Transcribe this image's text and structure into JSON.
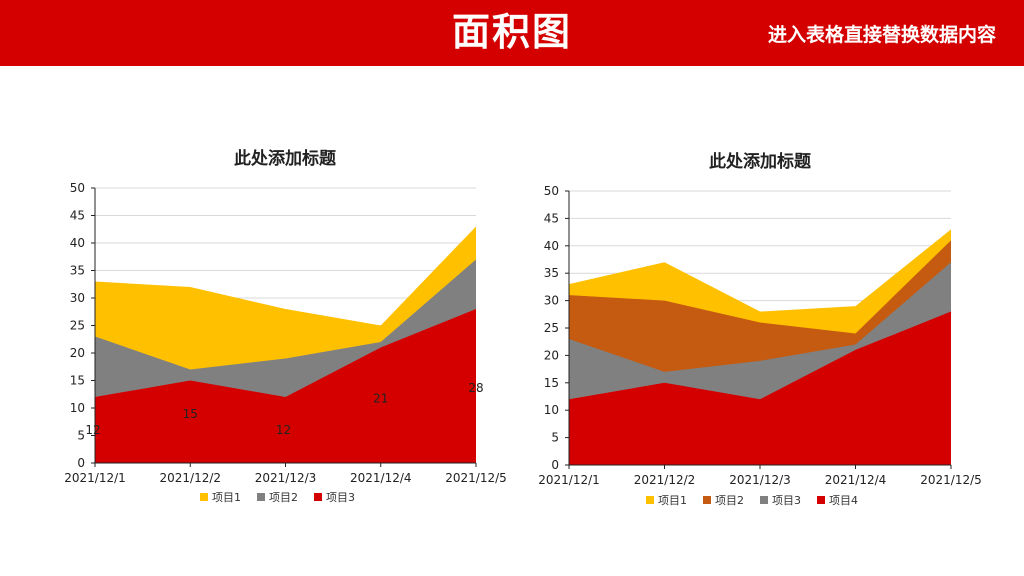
{
  "header": {
    "title": "面积图",
    "subtitle": "进入表格直接替换数据内容"
  },
  "colors": {
    "header_bg": "#d40000",
    "red": "#d40000",
    "gray": "#808080",
    "yellow": "#ffc000",
    "orange": "#c55a11"
  },
  "chart_data": [
    {
      "type": "area",
      "stacked": false,
      "title": "此处添加标题",
      "categories": [
        "2021/12/1",
        "2021/12/2",
        "2021/12/3",
        "2021/12/4",
        "2021/12/5"
      ],
      "ylim": [
        0,
        50
      ],
      "yticks": [
        0,
        5,
        10,
        15,
        20,
        25,
        30,
        35,
        40,
        45,
        50
      ],
      "grid": true,
      "legend_position": "bottom",
      "series": [
        {
          "name": "项目1",
          "color": "#ffc000",
          "values": [
            33,
            32,
            28,
            25,
            43
          ]
        },
        {
          "name": "项目2",
          "color": "#808080",
          "values": [
            23,
            17,
            19,
            22,
            37
          ]
        },
        {
          "name": "项目3",
          "color": "#d40000",
          "values": [
            12,
            15,
            12,
            21,
            28
          ]
        }
      ],
      "data_labels": {
        "series": "项目3",
        "values": [
          "12",
          "15",
          "12",
          "21",
          "28"
        ]
      }
    },
    {
      "type": "area",
      "stacked": false,
      "title": "此处添加标题",
      "categories": [
        "2021/12/1",
        "2021/12/2",
        "2021/12/3",
        "2021/12/4",
        "2021/12/5"
      ],
      "ylim": [
        0,
        50
      ],
      "yticks": [
        0,
        5,
        10,
        15,
        20,
        25,
        30,
        35,
        40,
        45,
        50
      ],
      "grid": true,
      "legend_position": "bottom",
      "series": [
        {
          "name": "项目1",
          "color": "#ffc000",
          "values": [
            33,
            37,
            28,
            29,
            43
          ]
        },
        {
          "name": "项目2",
          "color": "#c55a11",
          "values": [
            31,
            30,
            26,
            24,
            41
          ]
        },
        {
          "name": "项目3",
          "color": "#808080",
          "values": [
            23,
            17,
            19,
            22,
            37
          ]
        },
        {
          "name": "项目4",
          "color": "#d40000",
          "values": [
            12,
            15,
            12,
            21,
            28
          ]
        }
      ]
    }
  ]
}
